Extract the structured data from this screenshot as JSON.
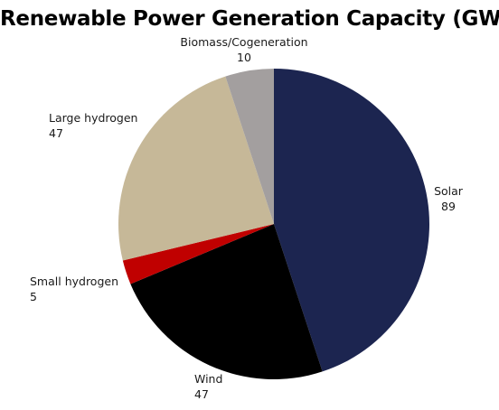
{
  "chart_data": {
    "type": "pie",
    "title": "Renewable Power Generation Capacity (GW)",
    "slices": [
      {
        "label": "Solar",
        "value": 89,
        "color": "#1c2550"
      },
      {
        "label": "Wind",
        "value": 47,
        "color": "#000000"
      },
      {
        "label": "Small hydrogen",
        "value": 5,
        "color": "#c00000"
      },
      {
        "label": "Large hydrogen",
        "value": 47,
        "color": "#c6b898"
      },
      {
        "label": "Biomass/Cogeneration",
        "value": 10,
        "color": "#a39f9f"
      }
    ],
    "start_angle": "12 o'clock",
    "direction": "clockwise",
    "legend": "none"
  }
}
